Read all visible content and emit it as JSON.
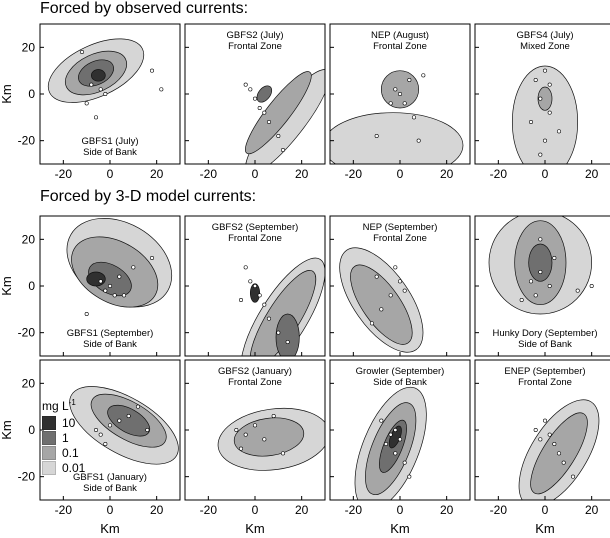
{
  "headings": {
    "observed": "Forced by observed currents:",
    "model": "Forced by 3-D model currents:"
  },
  "axes": {
    "ylabel": "Km",
    "xlabel": "Km",
    "xticks": [
      "-20",
      "0",
      "20"
    ],
    "yticks": [
      "20",
      "0",
      "-20"
    ]
  },
  "legend": {
    "title_main": "mg L",
    "title_exp": "-1",
    "entries": [
      {
        "label": "10",
        "color": "#303030"
      },
      {
        "label": "1",
        "color": "#6f6f6f"
      },
      {
        "label": "0.1",
        "color": "#a6a6a6"
      },
      {
        "label": "0.01",
        "color": "#d6d6d6"
      }
    ]
  },
  "panels": [
    {
      "row": 0,
      "col": 0,
      "name": "gbfs1-july",
      "label": [
        "GBFS1 (July)",
        "Side of Bank"
      ],
      "label_pos": "bottom"
    },
    {
      "row": 0,
      "col": 1,
      "name": "gbfs2-july",
      "label": [
        "GBFS2 (July)",
        "Frontal Zone"
      ],
      "label_pos": "top"
    },
    {
      "row": 0,
      "col": 2,
      "name": "nep-august",
      "label": [
        "NEP (August)",
        "Frontal Zone"
      ],
      "label_pos": "top"
    },
    {
      "row": 0,
      "col": 3,
      "name": "gbfs4-july",
      "label": [
        "GBFS4 (July)",
        "Mixed Zone"
      ],
      "label_pos": "top"
    },
    {
      "row": 1,
      "col": 0,
      "name": "gbfs1-september",
      "label": [
        "GBFS1 (September)",
        "Side of Bank"
      ],
      "label_pos": "bottom"
    },
    {
      "row": 1,
      "col": 1,
      "name": "gbfs2-september",
      "label": [
        "GBFS2 (September)",
        "Frontal Zone"
      ],
      "label_pos": "top"
    },
    {
      "row": 1,
      "col": 2,
      "name": "nep-september",
      "label": [
        "NEP (September)",
        "Frontal Zone"
      ],
      "label_pos": "top"
    },
    {
      "row": 1,
      "col": 3,
      "name": "hunky-dory-september",
      "label": [
        "Hunky Dory (September)",
        "Side of Bank"
      ],
      "label_pos": "bottom"
    },
    {
      "row": 2,
      "col": 0,
      "name": "gbfs1-january",
      "label": [
        "GBFS1 (January)",
        "Side of Bank"
      ],
      "label_pos": "bottom"
    },
    {
      "row": 2,
      "col": 1,
      "name": "gbfs2-january",
      "label": [
        "GBFS2 (January)",
        "Frontal Zone"
      ],
      "label_pos": "top"
    },
    {
      "row": 2,
      "col": 2,
      "name": "growler-september",
      "label": [
        "Growler (September)",
        "Side of Bank"
      ],
      "label_pos": "top"
    },
    {
      "row": 2,
      "col": 3,
      "name": "enep-september",
      "label": [
        "ENEP (September)",
        "Frontal Zone"
      ],
      "label_pos": "top"
    }
  ]
}
